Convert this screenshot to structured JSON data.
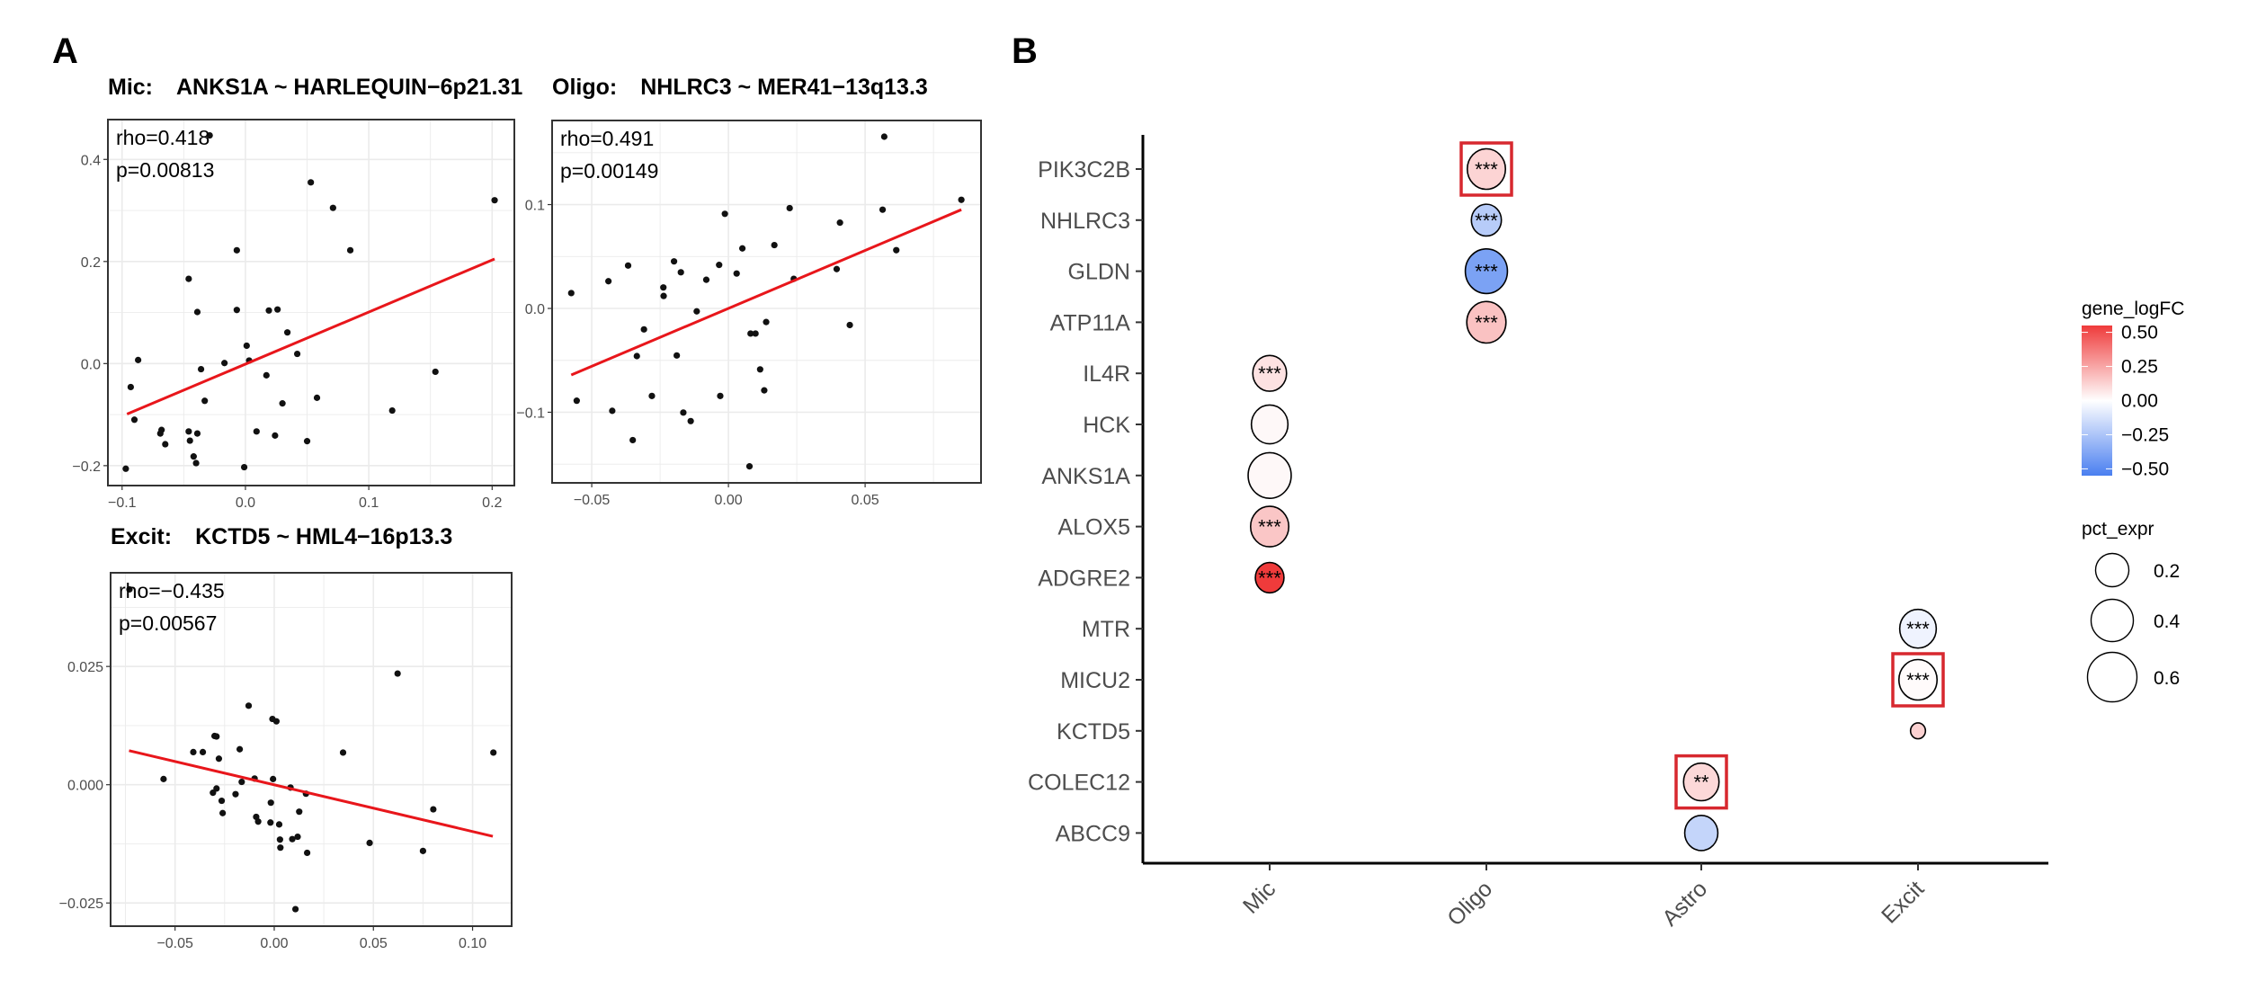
{
  "panel_labels": [
    "A",
    "B"
  ],
  "chart_data": [
    {
      "type": "scatter",
      "cell_type": "Mic:",
      "pair": "ANKS1A ~ HARLEQUIN−6p21.31",
      "annotation": [
        "rho=0.418",
        "p=0.00813"
      ],
      "xlim": [
        -0.1115,
        0.218
      ],
      "ylim": [
        -0.239,
        0.478
      ],
      "xticks": [
        "−0.1",
        "0.0",
        "0.1",
        "0.2"
      ],
      "yticks": [
        "−0.2",
        "0.0",
        "0.2",
        "0.4"
      ],
      "grid": true,
      "fit_color": "#e8161b",
      "fit_line": [
        [
          -0.096,
          -0.099
        ],
        [
          0.202,
          0.205
        ]
      ],
      "points": [
        [
          -0.029,
          0.447
        ],
        [
          0.053,
          0.355
        ],
        [
          0.071,
          0.305
        ],
        [
          0.202,
          0.32
        ],
        [
          -0.007,
          0.222
        ],
        [
          0.085,
          0.222
        ],
        [
          -0.046,
          0.166
        ],
        [
          -0.039,
          0.101
        ],
        [
          -0.007,
          0.105
        ],
        [
          0.019,
          0.104
        ],
        [
          0.026,
          0.106
        ],
        [
          0.034,
          0.061
        ],
        [
          0.001,
          0.035
        ],
        [
          -0.087,
          0.007
        ],
        [
          0.042,
          0.019
        ],
        [
          0.003,
          0.006
        ],
        [
          -0.017,
          0.001
        ],
        [
          -0.036,
          -0.011
        ],
        [
          -0.093,
          -0.046
        ],
        [
          0.017,
          -0.023
        ],
        [
          0.154,
          -0.016
        ],
        [
          -0.033,
          -0.073
        ],
        [
          0.03,
          -0.078
        ],
        [
          0.058,
          -0.067
        ],
        [
          0.119,
          -0.092
        ],
        [
          -0.09,
          -0.11
        ],
        [
          -0.068,
          -0.13
        ],
        [
          -0.069,
          -0.137
        ],
        [
          -0.065,
          -0.158
        ],
        [
          -0.046,
          -0.133
        ],
        [
          -0.039,
          -0.137
        ],
        [
          -0.045,
          -0.151
        ],
        [
          0.009,
          -0.133
        ],
        [
          0.024,
          -0.141
        ],
        [
          0.05,
          -0.152
        ],
        [
          -0.042,
          -0.182
        ],
        [
          -0.04,
          -0.195
        ],
        [
          -0.001,
          -0.203
        ],
        [
          -0.097,
          -0.206
        ]
      ]
    },
    {
      "type": "scatter",
      "cell_type": "Oligo:",
      "pair": "NHLRC3 ~ MER41−13q13.3",
      "annotation": [
        "rho=0.491",
        "p=0.00149"
      ],
      "xlim": [
        -0.0645,
        0.0924
      ],
      "ylim": [
        -0.168,
        0.181
      ],
      "xticks": [
        "−0.05",
        "0.00",
        "0.05"
      ],
      "yticks": [
        "−0.1",
        "0.0",
        "0.1"
      ],
      "grid": true,
      "fit_color": "#e8161b",
      "fit_line": [
        [
          -0.0575,
          -0.0641
        ],
        [
          0.0852,
          0.0951
        ]
      ],
      "points": [
        [
          0.057,
          0.1654
        ],
        [
          0.0852,
          0.1046
        ],
        [
          0.0224,
          0.0966
        ],
        [
          0.0564,
          0.0951
        ],
        [
          -0.0013,
          0.0911
        ],
        [
          0.0408,
          0.0826
        ],
        [
          -0.0575,
          0.0148
        ],
        [
          -0.0439,
          0.0262
        ],
        [
          -0.0367,
          0.0413
        ],
        [
          -0.0199,
          0.0453
        ],
        [
          -0.0174,
          0.0348
        ],
        [
          -0.0238,
          0.0202
        ],
        [
          -0.0237,
          0.012
        ],
        [
          -0.0081,
          0.0276
        ],
        [
          -0.0034,
          0.0419
        ],
        [
          0.0051,
          0.0578
        ],
        [
          0.0168,
          0.061
        ],
        [
          0.003,
          0.0336
        ],
        [
          0.0239,
          0.0285
        ],
        [
          0.0396,
          0.0379
        ],
        [
          0.0614,
          0.0561
        ],
        [
          -0.0116,
          -0.0028
        ],
        [
          -0.0309,
          -0.0202
        ],
        [
          -0.0335,
          -0.0459
        ],
        [
          -0.0189,
          -0.0453
        ],
        [
          0.0081,
          -0.0242
        ],
        [
          0.0099,
          -0.0242
        ],
        [
          0.0138,
          -0.0131
        ],
        [
          0.0444,
          -0.016
        ],
        [
          0.0116,
          -0.0587
        ],
        [
          0.0131,
          -0.0789
        ],
        [
          -0.003,
          -0.0843
        ],
        [
          -0.028,
          -0.0843
        ],
        [
          -0.0555,
          -0.0889
        ],
        [
          -0.0425,
          -0.0986
        ],
        [
          -0.0165,
          -0.1003
        ],
        [
          -0.0138,
          -0.1085
        ],
        [
          -0.035,
          -0.1268
        ],
        [
          0.0077,
          -0.1521
        ]
      ]
    },
    {
      "type": "scatter",
      "cell_type": "Excit:",
      "pair": "KCTD5 ~ HML4−16p13.3",
      "annotation": [
        "rho=−0.435",
        "p=0.00567"
      ],
      "xlim": [
        -0.0825,
        0.1197
      ],
      "ylim": [
        -0.0299,
        0.0448
      ],
      "xticks": [
        "−0.05",
        "0.00",
        "0.05",
        "0.10"
      ],
      "yticks": [
        "−0.025",
        "0.000",
        "0.025"
      ],
      "grid": true,
      "fit_color": "#e8161b",
      "fit_line": [
        [
          -0.0732,
          0.0072
        ],
        [
          0.1102,
          -0.0109
        ]
      ],
      "points": [
        [
          -0.073,
          0.0413
        ],
        [
          0.0622,
          0.0235
        ],
        [
          -0.0129,
          0.0167
        ],
        [
          -0.0009,
          0.0139
        ],
        [
          0.0011,
          0.0134
        ],
        [
          -0.0301,
          0.0103
        ],
        [
          -0.0291,
          0.0102
        ],
        [
          -0.0408,
          0.0069
        ],
        [
          -0.036,
          0.0069
        ],
        [
          -0.0174,
          0.0075
        ],
        [
          -0.0279,
          0.0055
        ],
        [
          0.0347,
          0.0068
        ],
        [
          0.1105,
          0.0068
        ],
        [
          -0.0558,
          0.0012
        ],
        [
          -0.0164,
          0.0006
        ],
        [
          -0.0099,
          0.0013
        ],
        [
          -0.0006,
          0.0012
        ],
        [
          0.0082,
          -0.0006
        ],
        [
          0.016,
          -0.0019
        ],
        [
          -0.0291,
          -0.0008
        ],
        [
          -0.0309,
          -0.0017
        ],
        [
          -0.0195,
          -0.002
        ],
        [
          -0.0265,
          -0.0034
        ],
        [
          -0.0017,
          -0.0038
        ],
        [
          -0.026,
          -0.006
        ],
        [
          0.0126,
          -0.0057
        ],
        [
          0.0802,
          -0.0052
        ],
        [
          -0.0091,
          -0.0068
        ],
        [
          -0.0081,
          -0.0078
        ],
        [
          -0.0019,
          -0.008
        ],
        [
          0.0025,
          -0.0084
        ],
        [
          0.0029,
          -0.0116
        ],
        [
          0.0091,
          -0.0115
        ],
        [
          0.0118,
          -0.011
        ],
        [
          0.0031,
          -0.0133
        ],
        [
          0.0166,
          -0.0144
        ],
        [
          0.0481,
          -0.0123
        ],
        [
          0.075,
          -0.014
        ],
        [
          0.0107,
          -0.0263
        ]
      ]
    },
    {
      "type": "dot",
      "categories": [
        "Mic",
        "Oligo",
        "Astro",
        "Excit"
      ],
      "genes": [
        "PIK3C2B",
        "NHLRC3",
        "GLDN",
        "ATP11A",
        "IL4R",
        "HCK",
        "ANKS1A",
        "ALOX5",
        "ADGRE2",
        "MTR",
        "MICU2",
        "KCTD5",
        "COLEC12",
        "ABCC9"
      ],
      "points": [
        {
          "gene": "PIK3C2B",
          "cell": "Oligo",
          "logFC": 0.12,
          "pct_expr": 0.35,
          "sig": "***",
          "highlighted": true
        },
        {
          "gene": "NHLRC3",
          "cell": "Oligo",
          "logFC": -0.22,
          "pct_expr": 0.21,
          "sig": "***",
          "highlighted": false
        },
        {
          "gene": "GLDN",
          "cell": "Oligo",
          "logFC": -0.4,
          "pct_expr": 0.43,
          "sig": "***",
          "highlighted": false
        },
        {
          "gene": "ATP11A",
          "cell": "Oligo",
          "logFC": 0.17,
          "pct_expr": 0.37,
          "sig": "***",
          "highlighted": false
        },
        {
          "gene": "IL4R",
          "cell": "Mic",
          "logFC": 0.08,
          "pct_expr": 0.27,
          "sig": "***",
          "highlighted": false
        },
        {
          "gene": "HCK",
          "cell": "Mic",
          "logFC": 0.02,
          "pct_expr": 0.32,
          "sig": "",
          "highlighted": false
        },
        {
          "gene": "ANKS1A",
          "cell": "Mic",
          "logFC": 0.02,
          "pct_expr": 0.45,
          "sig": "",
          "highlighted": false
        },
        {
          "gene": "ALOX5",
          "cell": "Mic",
          "logFC": 0.16,
          "pct_expr": 0.35,
          "sig": "***",
          "highlighted": false
        },
        {
          "gene": "ADGRE2",
          "cell": "Mic",
          "logFC": 0.55,
          "pct_expr": 0.19,
          "sig": "***",
          "highlighted": false
        },
        {
          "gene": "MTR",
          "cell": "Excit",
          "logFC": -0.05,
          "pct_expr": 0.32,
          "sig": "***",
          "highlighted": false
        },
        {
          "gene": "MICU2",
          "cell": "Excit",
          "logFC": 0.01,
          "pct_expr": 0.35,
          "sig": "***",
          "highlighted": true
        },
        {
          "gene": "KCTD5",
          "cell": "Excit",
          "logFC": 0.13,
          "pct_expr": 0.04,
          "sig": "",
          "highlighted": false
        },
        {
          "gene": "COLEC12",
          "cell": "Astro",
          "logFC": 0.11,
          "pct_expr": 0.3,
          "sig": "**",
          "highlighted": true
        },
        {
          "gene": "ABCC9",
          "cell": "Astro",
          "logFC": -0.18,
          "pct_expr": 0.26,
          "sig": "",
          "highlighted": false
        }
      ],
      "color_legend": {
        "title": "gene_logFC",
        "ticks": [
          "0.50",
          "0.25",
          "0.00",
          "−0.25",
          "−0.50"
        ],
        "limits": [
          -0.55,
          0.55
        ],
        "low": "#4a7ff0",
        "mid": "#ffffff",
        "high": "#ef3b3b"
      },
      "size_legend": {
        "title": "pct_expr",
        "values": [
          "0.2",
          "0.4",
          "0.6"
        ]
      },
      "highlight_color": "#d7282f"
    }
  ]
}
